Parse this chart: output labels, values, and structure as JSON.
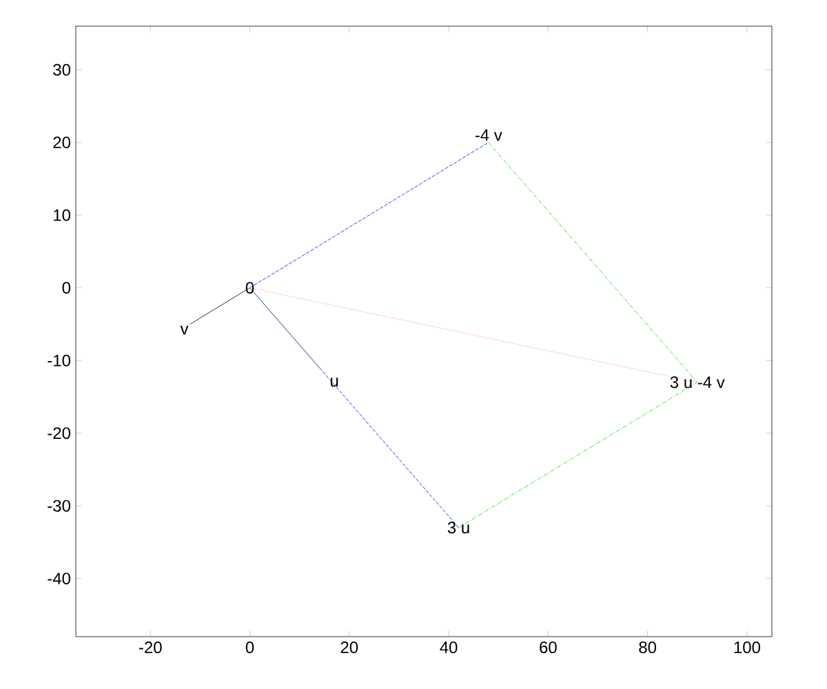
{
  "chart_data": {
    "type": "line",
    "xlim": [
      -35,
      105
    ],
    "ylim": [
      -48,
      36
    ],
    "xticks": [
      -20,
      0,
      20,
      40,
      60,
      80,
      100
    ],
    "yticks": [
      -40,
      -30,
      -20,
      -10,
      0,
      10,
      20,
      30
    ],
    "marker": "none",
    "series": [
      {
        "x": [
          0,
          -12
        ],
        "values": [
          0,
          -5
        ],
        "color": "#000000",
        "line_style": "solid"
      },
      {
        "x": [
          0,
          14
        ],
        "values": [
          0,
          -11
        ],
        "color": "#000080",
        "line_style": "solid"
      },
      {
        "x": [
          0,
          48
        ],
        "values": [
          0,
          20
        ],
        "color": "#0000ff",
        "line_style": "dashed"
      },
      {
        "x": [
          14,
          42
        ],
        "values": [
          -11,
          -33
        ],
        "color": "#0000ff",
        "line_style": "dashed"
      },
      {
        "x": [
          48,
          90
        ],
        "values": [
          20,
          -13
        ],
        "color": "#00dd00",
        "line_style": "dashdot"
      },
      {
        "x": [
          42,
          90
        ],
        "values": [
          -33,
          -13
        ],
        "color": "#00dd00",
        "line_style": "dashdot"
      },
      {
        "x": [
          0,
          90
        ],
        "values": [
          0,
          -13
        ],
        "color": "#ff9090",
        "line_style": "dotted"
      }
    ],
    "annotations": [
      {
        "text": "0",
        "x": 0,
        "y": 0
      },
      {
        "text": "v",
        "x": -12,
        "y": -5
      },
      {
        "text": "u",
        "x": 17,
        "y": -13
      },
      {
        "text": "3 u",
        "x": 42,
        "y": -33
      },
      {
        "text": "-4 v",
        "x": 48,
        "y": 20
      },
      {
        "text": "3 u -4 v",
        "x": 90,
        "y": -13
      }
    ]
  }
}
